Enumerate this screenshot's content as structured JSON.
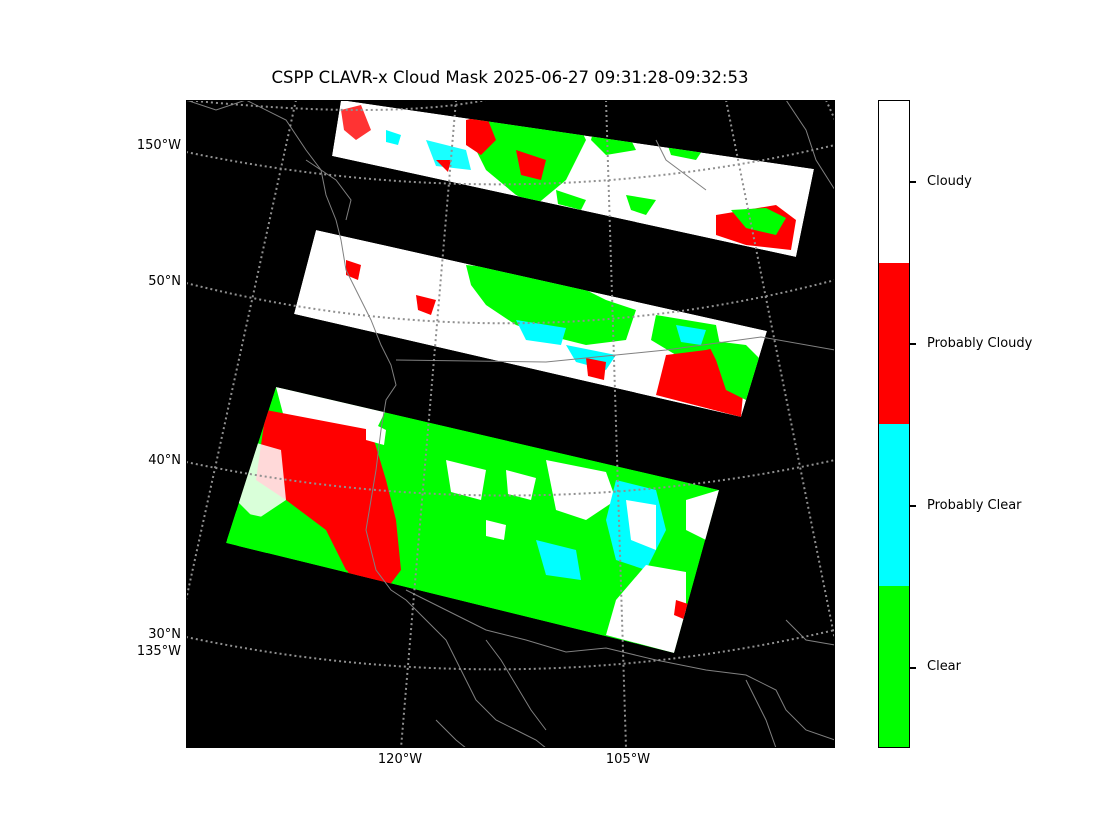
{
  "title": "CSPP CLAVR-x Cloud Mask 2025-06-27 09:31:28-09:32:53",
  "lat_labels": [
    "150°W",
    "50°N",
    "40°N",
    "30°N",
    "135°W"
  ],
  "lon_labels": [
    "120°W",
    "105°W"
  ],
  "colorbar": {
    "categories": [
      {
        "label": "Cloudy",
        "color": "#ffffff"
      },
      {
        "label": "Probably Cloudy",
        "color": "#ff0000"
      },
      {
        "label": "Probably Clear",
        "color": "#00ffff"
      },
      {
        "label": "Clear",
        "color": "#00ff00"
      }
    ]
  },
  "colors": {
    "background": "#000000",
    "coastline": "#808080",
    "gridline": "#909090"
  }
}
